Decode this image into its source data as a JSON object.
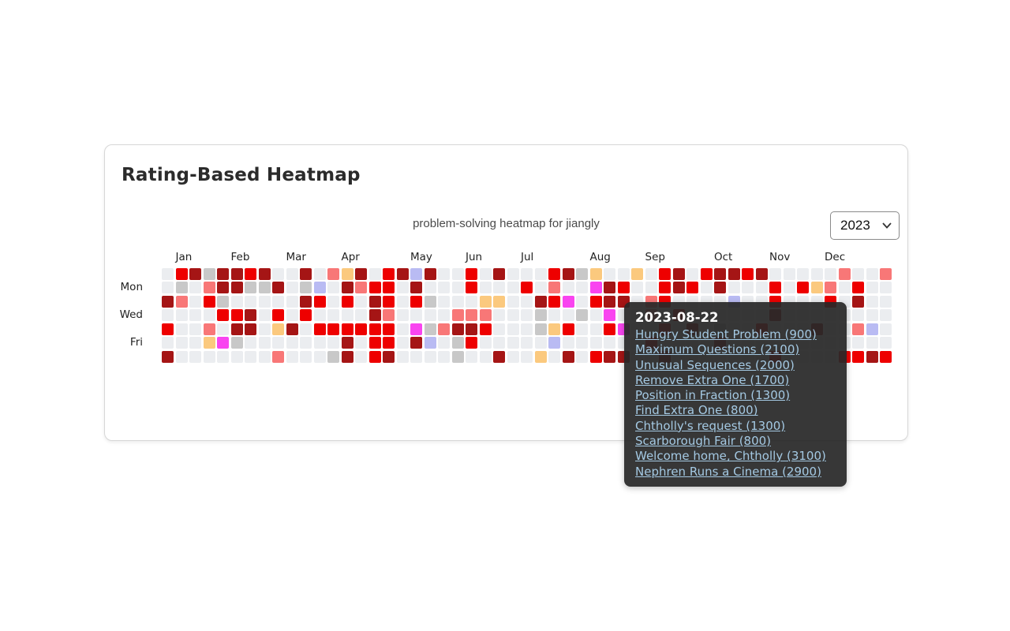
{
  "page": {
    "title": "Rating-Based Heatmap",
    "subtitle": "problem-solving heatmap for jiangly"
  },
  "year_select": {
    "value": "2023"
  },
  "chart_data": {
    "type": "heatmap",
    "title": "problem-solving heatmap for jiangly",
    "year": "2023",
    "weeks": 53,
    "days_per_week": 7,
    "month_labels": [
      "Jan",
      "Feb",
      "Mar",
      "Apr",
      "May",
      "Jun",
      "Jul",
      "Aug",
      "Sep",
      "Oct",
      "Nov",
      "Dec"
    ],
    "month_week_index": [
      0,
      4,
      8,
      12,
      17,
      21,
      25,
      30,
      34,
      39,
      43,
      47
    ],
    "day_labels": [
      {
        "label": "Mon",
        "row": 1
      },
      {
        "label": "Wed",
        "row": 3
      },
      {
        "label": "Fri",
        "row": 5
      }
    ],
    "palette": {
      ".": "#ebedf0",
      "g": "#c8c8c8",
      "s": "#f87777",
      "r": "#ee0000",
      "d": "#a51515",
      "o": "#fbc97e",
      "l": "#b9bbf3",
      "m": "#f944f0"
    },
    "rows": [
      ".rdgddrd..d.sod.rdld..r.d...rdgo..o.rd.rddrd.....s..sd",
      ".g.sddggd.gl.dsrr.d...r...r.s..mdr..rdr.d...r.ros.r..",
      "ds.rg.....dr.r.dr.rg...oo..drm.rdd.sr....l..r...r.d..",
      "....rrd.r.r....ds....sss...g..g.m..s.r......d........",
      "r..s.dd.od.rrrrrr.mgsddr...gor..rm..r.d.g..r...d..sl.",
      "...omg.......d.rr.dl.gr.....l......r....d............",
      "d.......s...gd.rd....g..d..o.d.rdd..d.......r....rrdr"
    ]
  },
  "tooltip": {
    "date": "2023-08-22",
    "problems": [
      "Hungry Student Problem (900)",
      "Maximum Questions (2100)",
      "Unusual Sequences (2000)",
      "Remove Extra One (1700)",
      "Position in Fraction (1300)",
      "Find Extra One (800)",
      "Chtholly's request (1300)",
      "Scarborough Fair (800)",
      "Welcome home, Chtholly (3100)",
      "Nephren Runs a Cinema (2900)"
    ]
  }
}
